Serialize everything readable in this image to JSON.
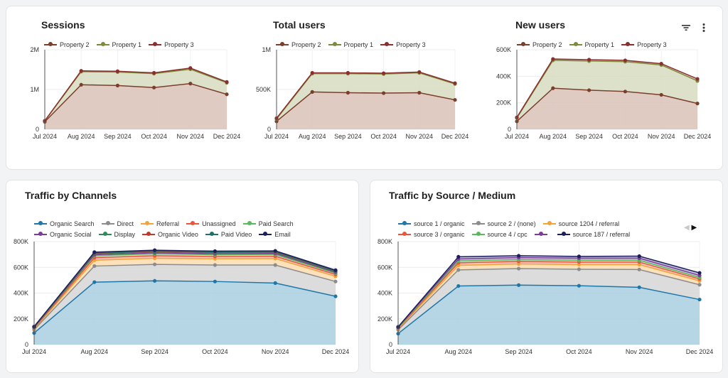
{
  "months": [
    "Jul 2024",
    "Aug 2024",
    "Sep 2024",
    "Oct 2024",
    "Nov 2024",
    "Dec 2024"
  ],
  "icons": {
    "filter": "filter-icon",
    "more": "more-vert-icon"
  },
  "pager": {
    "prev": "◀",
    "next": "▶"
  },
  "chart_data": [
    {
      "id": "sessions",
      "type": "area",
      "stacked": true,
      "title": "Sessions",
      "x": [
        "Jul 2024",
        "Aug 2024",
        "Sep 2024",
        "Oct 2024",
        "Nov 2024",
        "Dec 2024"
      ],
      "ylim": [
        0,
        2000000
      ],
      "yticks": [
        {
          "v": 0,
          "label": "0"
        },
        {
          "v": 1000000,
          "label": "1M"
        },
        {
          "v": 2000000,
          "label": "2M"
        }
      ],
      "series": [
        {
          "name": "Property 2",
          "color": "#7a3e2c",
          "values": [
            190000,
            1120000,
            1100000,
            1050000,
            1150000,
            880000
          ]
        },
        {
          "name": "Property 1",
          "color": "#7d8a3a",
          "values": [
            20000,
            330000,
            340000,
            350000,
            360000,
            290000
          ]
        },
        {
          "name": "Property 3",
          "color": "#8b2e2e",
          "values": [
            5000,
            20000,
            20000,
            20000,
            30000,
            20000
          ]
        }
      ]
    },
    {
      "id": "total-users",
      "type": "area",
      "stacked": true,
      "title": "Total users",
      "x": [
        "Jul 2024",
        "Aug 2024",
        "Sep 2024",
        "Oct 2024",
        "Nov 2024",
        "Dec 2024"
      ],
      "ylim": [
        0,
        1000000
      ],
      "yticks": [
        {
          "v": 0,
          "label": "0"
        },
        {
          "v": 500000,
          "label": "500K"
        },
        {
          "v": 1000000,
          "label": "1M"
        }
      ],
      "series": [
        {
          "name": "Property 2",
          "color": "#7a3e2c",
          "values": [
            100000,
            470000,
            460000,
            455000,
            460000,
            370000
          ]
        },
        {
          "name": "Property 1",
          "color": "#7d8a3a",
          "values": [
            30000,
            230000,
            240000,
            240000,
            250000,
            200000
          ]
        },
        {
          "name": "Property 3",
          "color": "#8b2e2e",
          "values": [
            10000,
            10000,
            10000,
            10000,
            10000,
            10000
          ]
        }
      ]
    },
    {
      "id": "new-users",
      "type": "area",
      "stacked": true,
      "title": "New users",
      "x": [
        "Jul 2024",
        "Aug 2024",
        "Sep 2024",
        "Oct 2024",
        "Nov 2024",
        "Dec 2024"
      ],
      "ylim": [
        0,
        600000
      ],
      "yticks": [
        {
          "v": 0,
          "label": "0"
        },
        {
          "v": 200000,
          "label": "200K"
        },
        {
          "v": 400000,
          "label": "400K"
        },
        {
          "v": 600000,
          "label": "600K"
        }
      ],
      "series": [
        {
          "name": "Property 2",
          "color": "#7a3e2c",
          "values": [
            60000,
            310000,
            295000,
            285000,
            260000,
            195000
          ]
        },
        {
          "name": "Property 1",
          "color": "#7d8a3a",
          "values": [
            25000,
            210000,
            220000,
            225000,
            225000,
            170000
          ]
        },
        {
          "name": "Property 3",
          "color": "#8b2e2e",
          "values": [
            5000,
            10000,
            10000,
            10000,
            10000,
            15000
          ]
        }
      ]
    },
    {
      "id": "channels",
      "type": "area",
      "stacked": true,
      "title": "Traffic by Channels",
      "x": [
        "Jul 2024",
        "Aug 2024",
        "Sep 2024",
        "Oct 2024",
        "Nov 2024",
        "Dec 2024"
      ],
      "ylim": [
        0,
        800000
      ],
      "yticks": [
        {
          "v": 0,
          "label": "0"
        },
        {
          "v": 200000,
          "label": "200K"
        },
        {
          "v": 400000,
          "label": "400K"
        },
        {
          "v": 600000,
          "label": "600K"
        },
        {
          "v": 800000,
          "label": "800K"
        }
      ],
      "series": [
        {
          "name": "Organic Search",
          "color": "#1f77a8",
          "fill": "#a9cfe0",
          "values": [
            90000,
            485000,
            495000,
            490000,
            478000,
            375000
          ]
        },
        {
          "name": "Direct",
          "color": "#8c8c8c",
          "fill": "#d6d6d6",
          "values": [
            25000,
            125000,
            128000,
            128000,
            140000,
            115000
          ]
        },
        {
          "name": "Referral",
          "color": "#f2a33a",
          "fill": "#fbdcae",
          "values": [
            8000,
            45000,
            47000,
            48000,
            50000,
            40000
          ]
        },
        {
          "name": "Unassigned",
          "color": "#e8553c",
          "fill": "#f5b9ab",
          "values": [
            5000,
            20000,
            20000,
            18000,
            18000,
            15000
          ]
        },
        {
          "name": "Paid Search",
          "color": "#5cb85c",
          "fill": "#bfe3bf",
          "values": [
            4000,
            15000,
            15000,
            14000,
            14000,
            10000
          ]
        },
        {
          "name": "Organic Social",
          "color": "#7d3c98",
          "fill": "#d2b5de",
          "values": [
            3000,
            8000,
            8000,
            8000,
            8000,
            7000
          ]
        },
        {
          "name": "Display",
          "color": "#2e8b57",
          "fill": "#b0d9c0",
          "values": [
            2000,
            8000,
            8000,
            8000,
            8000,
            6000
          ]
        },
        {
          "name": "Organic Video",
          "color": "#c0392b",
          "fill": "#e9b1aa",
          "values": [
            1000,
            4000,
            4000,
            4000,
            4000,
            3000
          ]
        },
        {
          "name": "Paid Video",
          "color": "#1f6f6a",
          "fill": "#a9d0cd",
          "values": [
            1000,
            3000,
            3000,
            3000,
            3000,
            2000
          ]
        },
        {
          "name": "Email",
          "color": "#1c1f5a",
          "fill": "#b3b5d6",
          "values": [
            1000,
            5000,
            5000,
            5000,
            5000,
            5000
          ]
        }
      ]
    },
    {
      "id": "source-medium",
      "type": "area",
      "stacked": true,
      "title": "Traffic by Source / Medium",
      "x": [
        "Jul 2024",
        "Aug 2024",
        "Sep 2024",
        "Oct 2024",
        "Nov 2024",
        "Dec 2024"
      ],
      "ylim": [
        0,
        800000
      ],
      "yticks": [
        {
          "v": 0,
          "label": "0"
        },
        {
          "v": 200000,
          "label": "200K"
        },
        {
          "v": 400000,
          "label": "400K"
        },
        {
          "v": 600000,
          "label": "600K"
        },
        {
          "v": 800000,
          "label": "800K"
        }
      ],
      "series": [
        {
          "name": "source 1 / organic",
          "color": "#1f77a8",
          "fill": "#a9cfe0",
          "values": [
            85000,
            455000,
            462000,
            457000,
            445000,
            350000
          ]
        },
        {
          "name": "source 2 / (none)",
          "color": "#8c8c8c",
          "fill": "#d6d6d6",
          "values": [
            30000,
            125000,
            128000,
            128000,
            138000,
            115000
          ]
        },
        {
          "name": "source 1204 / referral",
          "color": "#f2a33a",
          "fill": "#fbdcae",
          "values": [
            8000,
            35000,
            36000,
            36000,
            38000,
            30000
          ]
        },
        {
          "name": "source 3 / organic",
          "color": "#e8553c",
          "fill": "#f5b9ab",
          "values": [
            5000,
            20000,
            20000,
            20000,
            20000,
            15000
          ]
        },
        {
          "name": "source 4 / cpc",
          "color": "#5cb85c",
          "fill": "#bfe3bf",
          "values": [
            4000,
            15000,
            14000,
            14000,
            14000,
            12000
          ]
        },
        {
          "name": "",
          "color": "#7d3c98",
          "fill": "#d2b5de",
          "values": [
            3000,
            15000,
            16000,
            16000,
            16000,
            15000
          ]
        },
        {
          "name": "source 187 / referral",
          "color": "#1c1f5a",
          "fill": "#b3b5d6",
          "values": [
            3000,
            17000,
            14000,
            14000,
            16000,
            20000
          ]
        }
      ]
    }
  ]
}
